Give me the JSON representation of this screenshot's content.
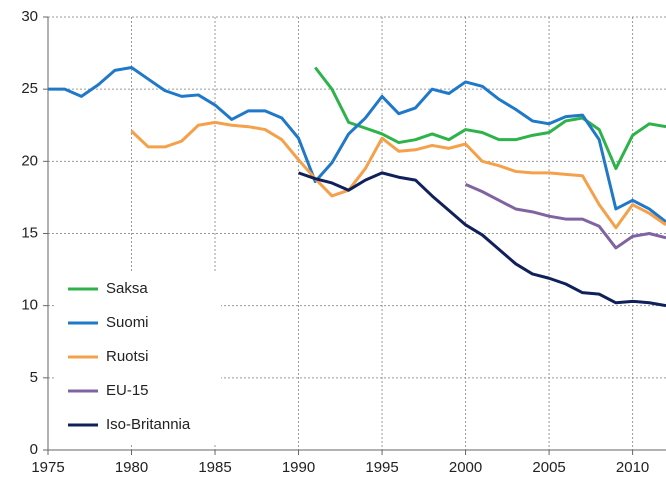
{
  "chart_data": {
    "type": "line",
    "x": [
      1975,
      1976,
      1977,
      1978,
      1979,
      1980,
      1981,
      1982,
      1983,
      1984,
      1985,
      1986,
      1987,
      1988,
      1989,
      1990,
      1991,
      1992,
      1993,
      1994,
      1995,
      1996,
      1997,
      1998,
      1999,
      2000,
      2001,
      2002,
      2003,
      2004,
      2005,
      2006,
      2007,
      2008,
      2009,
      2010,
      2011,
      2012
    ],
    "series": [
      {
        "name": "Saksa",
        "color": "#2db34a",
        "values": [
          null,
          null,
          null,
          null,
          null,
          null,
          null,
          null,
          null,
          null,
          null,
          null,
          null,
          null,
          null,
          null,
          26.5,
          25.0,
          22.7,
          22.3,
          21.9,
          21.3,
          21.5,
          21.9,
          21.5,
          22.2,
          22.0,
          21.5,
          21.5,
          21.8,
          22.0,
          22.8,
          23.0,
          22.2,
          19.5,
          21.8,
          22.6,
          22.4
        ]
      },
      {
        "name": "Suomi",
        "color": "#1f78c8",
        "values": [
          25.0,
          25.0,
          24.5,
          25.3,
          26.3,
          26.5,
          25.7,
          24.9,
          24.5,
          24.6,
          23.9,
          22.9,
          23.5,
          23.5,
          23.0,
          21.6,
          18.6,
          19.9,
          21.9,
          23.0,
          24.5,
          23.3,
          23.7,
          25.0,
          24.7,
          25.5,
          25.2,
          24.3,
          23.6,
          22.8,
          22.6,
          23.1,
          23.2,
          21.5,
          16.7,
          17.3,
          16.7,
          15.8
        ]
      },
      {
        "name": "Ruotsi",
        "color": "#f5a04a",
        "values": [
          null,
          null,
          null,
          null,
          null,
          22.1,
          21.0,
          21.0,
          21.4,
          22.5,
          22.7,
          22.5,
          22.4,
          22.2,
          21.5,
          20.1,
          18.8,
          17.6,
          18.0,
          19.5,
          21.6,
          20.7,
          20.8,
          21.1,
          20.9,
          21.2,
          20.0,
          19.7,
          19.3,
          19.2,
          19.2,
          19.1,
          19.0,
          17.0,
          15.4,
          17.0,
          16.4,
          15.6
        ]
      },
      {
        "name": "EU-15",
        "color": "#8064a2",
        "values": [
          null,
          null,
          null,
          null,
          null,
          null,
          null,
          null,
          null,
          null,
          null,
          null,
          null,
          null,
          null,
          null,
          null,
          null,
          null,
          null,
          null,
          null,
          null,
          null,
          null,
          18.4,
          17.9,
          17.3,
          16.7,
          16.5,
          16.2,
          16.0,
          16.0,
          15.5,
          14.0,
          14.8,
          15.0,
          14.7
        ]
      },
      {
        "name": "Iso-Britannia",
        "color": "#10205a",
        "values": [
          null,
          null,
          null,
          null,
          null,
          null,
          null,
          null,
          null,
          null,
          null,
          null,
          null,
          null,
          null,
          19.2,
          18.8,
          18.5,
          18.0,
          18.7,
          19.2,
          18.9,
          18.7,
          17.6,
          16.6,
          15.6,
          14.9,
          13.9,
          12.9,
          12.2,
          11.9,
          11.5,
          10.9,
          10.8,
          10.2,
          10.3,
          10.2,
          10.0
        ]
      }
    ],
    "xlim": [
      1975,
      2012
    ],
    "xticks": [
      1975,
      1980,
      1985,
      1990,
      1995,
      2000,
      2005,
      2010
    ],
    "ylim": [
      0,
      30
    ],
    "yticks": [
      0,
      5,
      10,
      15,
      20,
      25,
      30
    ],
    "grid": true,
    "legend": "lower left"
  }
}
